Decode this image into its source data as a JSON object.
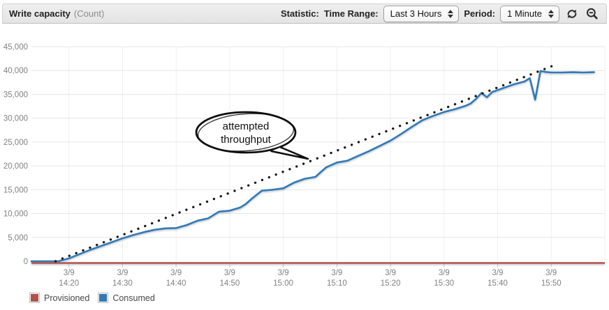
{
  "header": {
    "title": "Write capacity",
    "unit": "(Count)",
    "statistic_label": "Statistic:",
    "time_range_label": "Time Range:",
    "time_range_value": "Last 3 Hours",
    "period_label": "Period:",
    "period_value": "1 Minute",
    "icons": [
      "refresh-icon",
      "zoom-out-icon"
    ]
  },
  "annotation": {
    "line1": "attempted",
    "line2": "throughput"
  },
  "legend": {
    "items": [
      {
        "label": "Provisioned",
        "color": "#b0524d"
      },
      {
        "label": "Consumed",
        "color": "#3279b5"
      }
    ]
  },
  "chart_data": {
    "type": "line",
    "title": "Write capacity (Count)",
    "xlabel": "",
    "ylabel": "",
    "ylim": [
      0,
      45000
    ],
    "ytick_step": 5000,
    "grid": true,
    "legend_position": "bottom-left",
    "y_ticks": [
      {
        "v": 0,
        "label": "0"
      },
      {
        "v": 5000,
        "label": "5,000"
      },
      {
        "v": 10000,
        "label": "10,000"
      },
      {
        "v": 15000,
        "label": "15,000"
      },
      {
        "v": 20000,
        "label": "20,000"
      },
      {
        "v": 25000,
        "label": "25,000"
      },
      {
        "v": 30000,
        "label": "30,000"
      },
      {
        "v": 35000,
        "label": "35,000"
      },
      {
        "v": 40000,
        "label": "40,000"
      },
      {
        "v": 45000,
        "label": "45,000"
      }
    ],
    "t_range": [
      13,
      120
    ],
    "grid_ticks_t": [
      20,
      30,
      40,
      50,
      60,
      70,
      80,
      90,
      100,
      110,
      120
    ],
    "x_ticks": [
      {
        "t": 20,
        "date": "3/9",
        "time": "14:20"
      },
      {
        "t": 30,
        "date": "3/9",
        "time": "14:30"
      },
      {
        "t": 40,
        "date": "3/9",
        "time": "14:40"
      },
      {
        "t": 50,
        "date": "3/9",
        "time": "14:50"
      },
      {
        "t": 60,
        "date": "3/9",
        "time": "15:00"
      },
      {
        "t": 70,
        "date": "3/9",
        "time": "15:10"
      },
      {
        "t": 80,
        "date": "3/9",
        "time": "15:20"
      },
      {
        "t": 90,
        "date": "3/9",
        "time": "15:30"
      },
      {
        "t": 100,
        "date": "3/9",
        "time": "15:40"
      },
      {
        "t": 110,
        "date": "3/9",
        "time": "15:50"
      }
    ],
    "series": [
      {
        "name": "Provisioned",
        "style": "solid",
        "color": "#b0524d",
        "constant_value": 0
      },
      {
        "name": "Consumed",
        "style": "solid",
        "color": "#3279b5",
        "points": [
          [
            13,
            0
          ],
          [
            16,
            0
          ],
          [
            18,
            0
          ],
          [
            20,
            600
          ],
          [
            22,
            1500
          ],
          [
            24,
            2400
          ],
          [
            26,
            3200
          ],
          [
            28,
            4000
          ],
          [
            30,
            4800
          ],
          [
            32,
            5500
          ],
          [
            34,
            6100
          ],
          [
            36,
            6600
          ],
          [
            38,
            6900
          ],
          [
            40,
            6950
          ],
          [
            42,
            7600
          ],
          [
            44,
            8500
          ],
          [
            46,
            9000
          ],
          [
            48,
            10400
          ],
          [
            50,
            10600
          ],
          [
            52,
            11300
          ],
          [
            53,
            12000
          ],
          [
            54,
            13000
          ],
          [
            56,
            14800
          ],
          [
            58,
            15000
          ],
          [
            60,
            15300
          ],
          [
            62,
            16500
          ],
          [
            64,
            17300
          ],
          [
            66,
            17700
          ],
          [
            67,
            18700
          ],
          [
            68,
            19700
          ],
          [
            70,
            20700
          ],
          [
            72,
            21100
          ],
          [
            74,
            22100
          ],
          [
            76,
            23100
          ],
          [
            78,
            24200
          ],
          [
            80,
            25300
          ],
          [
            82,
            26700
          ],
          [
            84,
            28200
          ],
          [
            86,
            29600
          ],
          [
            88,
            30500
          ],
          [
            90,
            31300
          ],
          [
            92,
            31900
          ],
          [
            94,
            32600
          ],
          [
            95,
            33100
          ],
          [
            96,
            34100
          ],
          [
            97,
            35300
          ],
          [
            98,
            34400
          ],
          [
            99,
            35500
          ],
          [
            100,
            35900
          ],
          [
            101,
            36300
          ],
          [
            102,
            36700
          ],
          [
            103,
            37100
          ],
          [
            104,
            37400
          ],
          [
            105,
            37700
          ],
          [
            106,
            38400
          ],
          [
            107,
            33900
          ],
          [
            108,
            39900
          ],
          [
            109,
            39700
          ],
          [
            110,
            39600
          ],
          [
            112,
            39600
          ],
          [
            114,
            39650
          ],
          [
            116,
            39600
          ],
          [
            118,
            39650
          ]
        ]
      },
      {
        "name": "attempted throughput",
        "style": "dotted",
        "color": "#141414",
        "points": [
          [
            17.5,
            0
          ],
          [
            111,
            41300
          ]
        ]
      }
    ]
  }
}
